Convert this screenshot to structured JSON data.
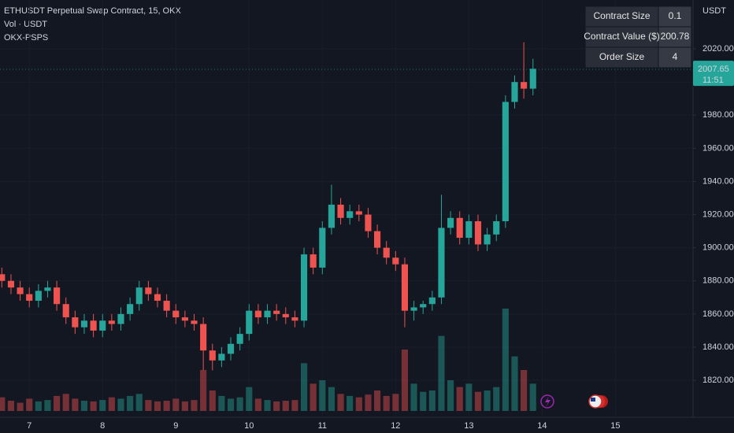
{
  "chart_data": {
    "type": "candlestick",
    "title": "ETHUSDT Perpetual Swap Contract, 15, OKX",
    "subtitle": "Vol · USDT",
    "indicator": "OKX-PSPS",
    "y_label": "USDT",
    "x": [
      6.625,
      6.75,
      6.875,
      7,
      7.125,
      7.25,
      7.375,
      7.5,
      7.625,
      7.75,
      7.875,
      8,
      8.125,
      8.25,
      8.375,
      8.5,
      8.625,
      8.75,
      8.875,
      9,
      9.125,
      9.25,
      9.375,
      9.5,
      9.625,
      9.75,
      9.875,
      10,
      10.125,
      10.25,
      10.375,
      10.5,
      10.625,
      10.75,
      10.875,
      11,
      11.125,
      11.25,
      11.375,
      11.5,
      11.625,
      11.75,
      11.875,
      12,
      12.125,
      12.25,
      12.375,
      12.5,
      12.625,
      12.75,
      12.875,
      13,
      13.125,
      13.25,
      13.375,
      13.5,
      13.625,
      13.75,
      13.875
    ],
    "open": [
      1884,
      1880,
      1876,
      1872,
      1868,
      1874,
      1876,
      1866,
      1858,
      1852,
      1856,
      1850,
      1856,
      1854,
      1860,
      1866,
      1876,
      1872,
      1868,
      1862,
      1858,
      1856,
      1854,
      1838,
      1832,
      1836,
      1842,
      1848,
      1862,
      1858,
      1862,
      1860,
      1858,
      1856,
      1896,
      1888,
      1912,
      1926,
      1918,
      1922,
      1920,
      1910,
      1900,
      1894,
      1890,
      1862,
      1864,
      1866,
      1870,
      1912,
      1918,
      1906,
      1916,
      1902,
      1908,
      1916,
      1988,
      2000,
      1996
    ],
    "high": [
      1888,
      1884,
      1880,
      1876,
      1878,
      1880,
      1880,
      1870,
      1862,
      1860,
      1860,
      1860,
      1860,
      1864,
      1870,
      1880,
      1880,
      1876,
      1872,
      1866,
      1862,
      1860,
      1858,
      1842,
      1840,
      1846,
      1852,
      1866,
      1866,
      1866,
      1866,
      1864,
      1862,
      1900,
      1900,
      1916,
      1938,
      1930,
      1926,
      1926,
      1924,
      1914,
      1904,
      1898,
      1894,
      1868,
      1868,
      1874,
      1932,
      1922,
      1922,
      1920,
      1920,
      1912,
      1920,
      1992,
      2004,
      2024,
      2014
    ],
    "low": [
      1876,
      1872,
      1868,
      1864,
      1864,
      1870,
      1862,
      1854,
      1848,
      1848,
      1846,
      1846,
      1850,
      1850,
      1856,
      1862,
      1868,
      1864,
      1858,
      1854,
      1852,
      1850,
      1826,
      1826,
      1828,
      1832,
      1838,
      1844,
      1854,
      1854,
      1856,
      1854,
      1852,
      1852,
      1884,
      1884,
      1908,
      1914,
      1914,
      1916,
      1906,
      1896,
      1890,
      1886,
      1852,
      1856,
      1860,
      1862,
      1866,
      1908,
      1902,
      1902,
      1898,
      1898,
      1904,
      1912,
      1984,
      1990,
      1992
    ],
    "close": [
      1880,
      1876,
      1872,
      1868,
      1874,
      1876,
      1866,
      1858,
      1852,
      1856,
      1850,
      1856,
      1854,
      1860,
      1866,
      1876,
      1872,
      1868,
      1862,
      1858,
      1856,
      1854,
      1838,
      1832,
      1836,
      1842,
      1848,
      1862,
      1858,
      1862,
      1860,
      1858,
      1856,
      1896,
      1888,
      1912,
      1926,
      1918,
      1922,
      1920,
      1910,
      1900,
      1894,
      1890,
      1862,
      1864,
      1866,
      1870,
      1912,
      1918,
      1906,
      1916,
      1902,
      1908,
      1916,
      1988,
      2000,
      1996,
      2008
    ],
    "volume": [
      20,
      15,
      12,
      18,
      14,
      16,
      22,
      25,
      18,
      15,
      14,
      16,
      20,
      18,
      22,
      25,
      16,
      14,
      15,
      18,
      14,
      16,
      60,
      30,
      22,
      18,
      20,
      35,
      18,
      16,
      14,
      15,
      16,
      70,
      40,
      45,
      35,
      25,
      22,
      20,
      24,
      30,
      22,
      25,
      90,
      40,
      28,
      30,
      110,
      45,
      35,
      40,
      28,
      30,
      35,
      150,
      80,
      60,
      40
    ],
    "up_color": "#26a69a",
    "down_color": "#ef5350",
    "xlim": [
      6.6,
      16.06
    ],
    "xticks": [
      7,
      8,
      9,
      10,
      11,
      12,
      13,
      14,
      15
    ],
    "ylim": [
      1797.7,
      2049.5
    ],
    "yticks": [
      {
        "value": 1820,
        "label": "1820.00"
      },
      {
        "value": 1840,
        "label": "1840.00"
      },
      {
        "value": 1860,
        "label": "1860.00"
      },
      {
        "value": 1880,
        "label": "1880.00"
      },
      {
        "value": 1900,
        "label": "1900.00"
      },
      {
        "value": 1920,
        "label": "1920.00"
      },
      {
        "value": 1940,
        "label": "1940.00"
      },
      {
        "value": 1960,
        "label": "1960.00"
      },
      {
        "value": 1980,
        "label": "1980.00"
      },
      {
        "value": 2000,
        "label": "2000.00"
      },
      {
        "value": 2020,
        "label": "2020.00"
      }
    ],
    "last_price": 2007.65,
    "countdown": "11:51",
    "info_table": [
      [
        "Contract Size",
        "0.1"
      ],
      [
        "Contract Value ($)",
        "200.78"
      ],
      [
        "Order Size",
        "4"
      ]
    ]
  }
}
